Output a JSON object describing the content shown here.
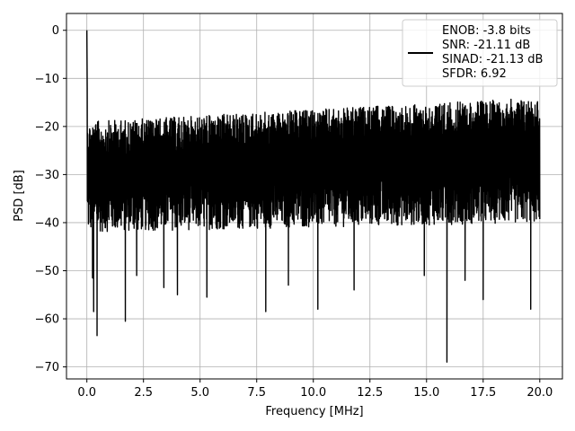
{
  "chart_data": {
    "type": "line",
    "xlabel": "Frequency [MHz]",
    "ylabel": "PSD [dB]",
    "xlim": [
      -0.9,
      21.0
    ],
    "ylim": [
      -72.5,
      3.5
    ],
    "xticks": [
      0.0,
      2.5,
      5.0,
      7.5,
      10.0,
      12.5,
      15.0,
      17.5,
      20.0
    ],
    "xtick_labels": [
      "0.0",
      "2.5",
      "5.0",
      "7.5",
      "10.0",
      "12.5",
      "15.0",
      "17.5",
      "20.0"
    ],
    "yticks": [
      0,
      -10,
      -20,
      -30,
      -40,
      -50,
      -60,
      -70
    ],
    "ytick_labels": [
      "0",
      "−10",
      "−20",
      "−30",
      "−40",
      "−50",
      "−60",
      "−70"
    ],
    "grid": true,
    "legend_position": "top-right",
    "series": [
      {
        "name": "ENOB: -3.8 bits\nSNR: -21.11 dB\nSINAD: -21.13 dB\nSFDR: 6.92",
        "color": "#000000",
        "x_range": [
          0.0,
          20.0
        ],
        "description_values": {
          "peak_at_0": 0,
          "floor_low_start": -42,
          "floor_low_end": -40,
          "upper_envelope_start": -19,
          "upper_envelope_end": -14
        },
        "notable_minima": [
          {
            "x": 0.25,
            "y": -51.5
          },
          {
            "x": 0.3,
            "y": -58.5
          },
          {
            "x": 0.45,
            "y": -63.5
          },
          {
            "x": 1.7,
            "y": -60.5
          },
          {
            "x": 2.2,
            "y": -51
          },
          {
            "x": 3.4,
            "y": -53.5
          },
          {
            "x": 4.0,
            "y": -55
          },
          {
            "x": 5.3,
            "y": -55.5
          },
          {
            "x": 7.9,
            "y": -58.5
          },
          {
            "x": 8.9,
            "y": -53
          },
          {
            "x": 10.2,
            "y": -58
          },
          {
            "x": 11.8,
            "y": -54
          },
          {
            "x": 14.9,
            "y": -51
          },
          {
            "x": 15.9,
            "y": -69
          },
          {
            "x": 16.7,
            "y": -52
          },
          {
            "x": 17.5,
            "y": -56
          },
          {
            "x": 19.6,
            "y": -58
          }
        ]
      }
    ],
    "legend_lines": [
      "ENOB: -3.8 bits",
      "SNR: -21.11 dB",
      "SINAD: -21.13 dB",
      "SFDR: 6.92"
    ]
  }
}
